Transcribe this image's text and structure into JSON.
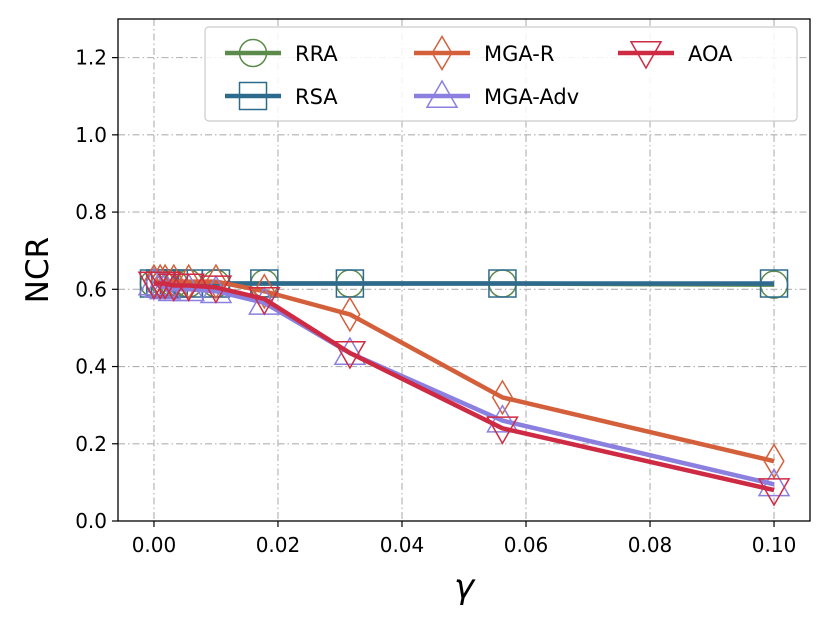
{
  "chart_data": {
    "type": "line",
    "title": "",
    "xlabel": "γ",
    "ylabel": "NCR",
    "xlim": [
      -0.0058,
      0.1058
    ],
    "ylim": [
      0.0,
      1.3
    ],
    "xticks": [
      0.0,
      0.02,
      0.04,
      0.06,
      0.08,
      0.1
    ],
    "xtick_labels": [
      "0.00",
      "0.02",
      "0.04",
      "0.06",
      "0.08",
      "0.10"
    ],
    "yticks": [
      0.0,
      0.2,
      0.4,
      0.6,
      0.8,
      1.0,
      1.2
    ],
    "ytick_labels": [
      "0.0",
      "0.2",
      "0.4",
      "0.6",
      "0.8",
      "1.0",
      "1.2"
    ],
    "grid": true,
    "legend_position": "top-right",
    "x": [
      0.0,
      0.001,
      0.0018,
      0.0032,
      0.0056,
      0.01,
      0.0178,
      0.0316,
      0.0562,
      0.1
    ],
    "series": [
      {
        "name": "RRA",
        "color": "#5b8a4a",
        "marker": "circle",
        "values": [
          0.615,
          0.615,
          0.615,
          0.615,
          0.615,
          0.615,
          0.615,
          0.615,
          0.615,
          0.612
        ]
      },
      {
        "name": "RSA",
        "color": "#2e6a8e",
        "marker": "square",
        "values": [
          0.615,
          0.615,
          0.615,
          0.615,
          0.615,
          0.615,
          0.615,
          0.615,
          0.615,
          0.615
        ]
      },
      {
        "name": "MGA-R",
        "color": "#d4603b",
        "marker": "diamond",
        "values": [
          0.62,
          0.62,
          0.62,
          0.62,
          0.62,
          0.62,
          0.595,
          0.535,
          0.32,
          0.155
        ]
      },
      {
        "name": "MGA-Adv",
        "color": "#8b80e0",
        "marker": "triangle-up",
        "values": [
          0.615,
          0.61,
          0.605,
          0.6,
          0.6,
          0.595,
          0.565,
          0.435,
          0.26,
          0.095
        ]
      },
      {
        "name": "AOA",
        "color": "#cf2a44",
        "marker": "triangle-down",
        "values": [
          0.615,
          0.615,
          0.615,
          0.61,
          0.61,
          0.605,
          0.575,
          0.435,
          0.24,
          0.08
        ]
      }
    ]
  }
}
